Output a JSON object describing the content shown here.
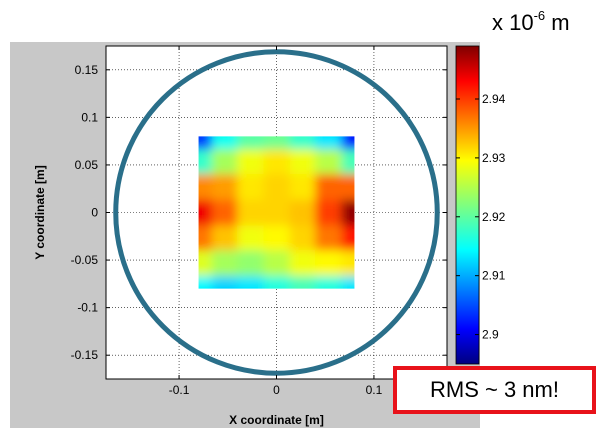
{
  "chart_data": {
    "type": "heatmap",
    "xlabel": "X coordinate [m]",
    "ylabel": "Y coordinate [m]",
    "xlim": [
      -0.175,
      0.175
    ],
    "ylim": [
      -0.175,
      0.175
    ],
    "x_ticks": [
      -0.1,
      0,
      0.1
    ],
    "x_tick_labels": [
      "-0.1",
      "0",
      "0.1"
    ],
    "y_ticks": [
      0.15,
      0.1,
      0.05,
      0,
      -0.05,
      -0.1,
      -0.15
    ],
    "y_tick_labels": [
      "0.15",
      "0.1",
      "0.05",
      "0",
      "-0.05",
      "-0.1",
      "-0.15"
    ],
    "grid": true,
    "grid_style": "dotted",
    "colormap": "jet",
    "colorbar": {
      "min": 2.895,
      "max": 2.949,
      "ticks": [
        2.94,
        2.93,
        2.92,
        2.91,
        2.9
      ],
      "tick_labels": [
        "2.94",
        "2.93",
        "2.92",
        "2.91",
        "2.9"
      ],
      "unit_base": "x 10",
      "unit_exponent": "-6",
      "unit_suffix": " m"
    },
    "data_region": {
      "x": [
        -0.08,
        0.08
      ],
      "y": [
        -0.08,
        0.08
      ]
    },
    "grid_x": [
      -0.08,
      -0.053,
      -0.027,
      0,
      0.027,
      0.053,
      0.08
    ],
    "grid_y": [
      0.08,
      0.053,
      0.027,
      0,
      -0.027,
      -0.053,
      -0.08
    ],
    "values": [
      [
        2.905,
        2.916,
        2.92,
        2.921,
        2.918,
        2.914,
        2.903
      ],
      [
        2.918,
        2.924,
        2.928,
        2.93,
        2.928,
        2.925,
        2.919
      ],
      [
        2.935,
        2.934,
        2.93,
        2.931,
        2.93,
        2.937,
        2.937
      ],
      [
        2.943,
        2.937,
        2.931,
        2.931,
        2.932,
        2.939,
        2.948
      ],
      [
        2.936,
        2.932,
        2.928,
        2.929,
        2.931,
        2.936,
        2.941
      ],
      [
        2.927,
        2.924,
        2.923,
        2.925,
        2.928,
        2.929,
        2.93
      ],
      [
        2.915,
        2.913,
        2.914,
        2.917,
        2.919,
        2.917,
        2.914
      ]
    ],
    "circle": {
      "center": [
        0,
        0
      ],
      "radius": 0.165,
      "color": "#2a6f8a"
    }
  },
  "annotation": {
    "text": "RMS ~ 3 nm!",
    "border_color": "#e8121a"
  }
}
